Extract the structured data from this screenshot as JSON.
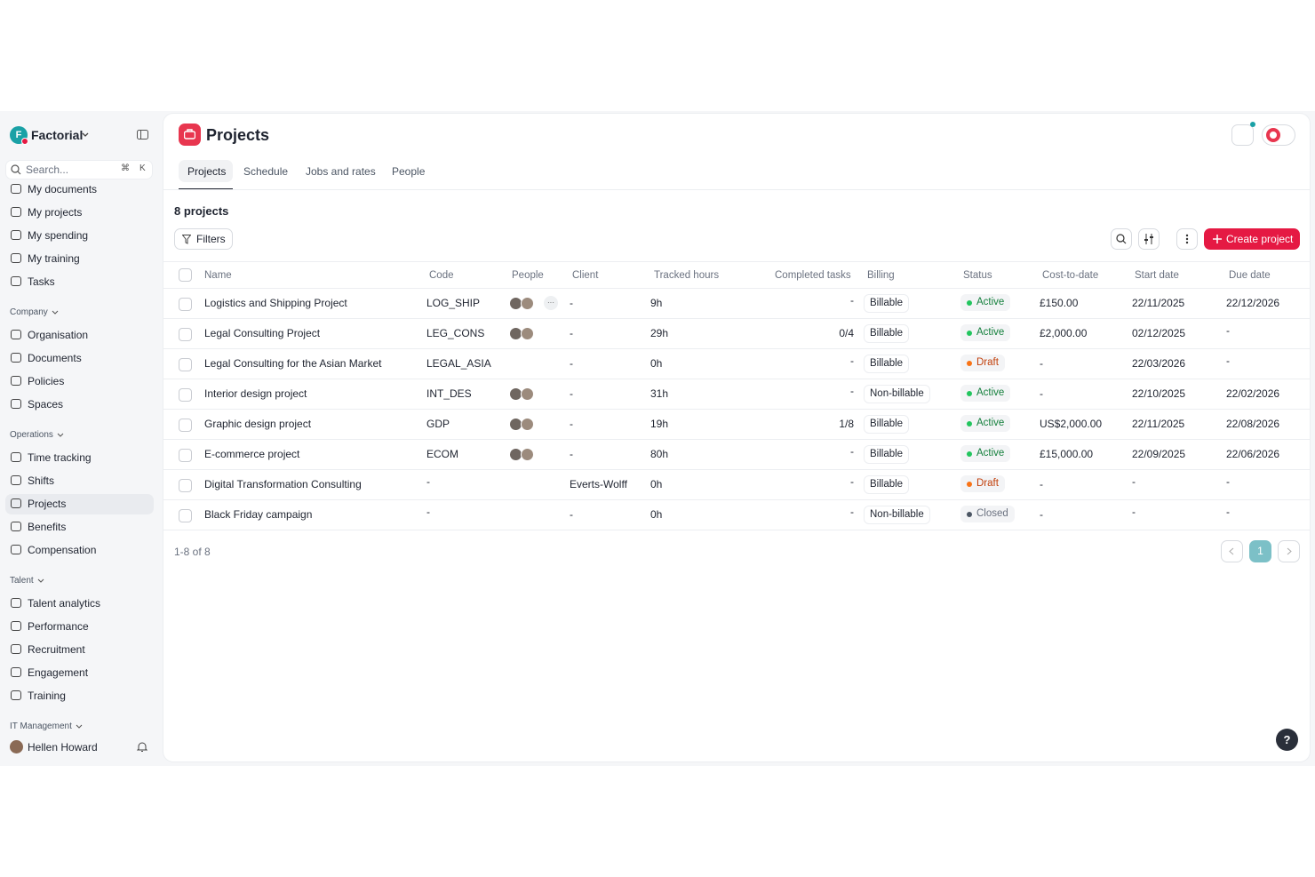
{
  "sidebar": {
    "brand": {
      "logo_letter": "F",
      "name": "Factorial"
    },
    "search": {
      "placeholder": "Search...",
      "shortcut_mod": "⌘",
      "shortcut_key": "K"
    },
    "personal": [
      "My documents",
      "My projects",
      "My spending",
      "My training",
      "Tasks"
    ],
    "sections": [
      {
        "title": "Company",
        "items": [
          "Organisation",
          "Documents",
          "Policies",
          "Spaces"
        ]
      },
      {
        "title": "Operations",
        "items": [
          "Time tracking",
          "Shifts",
          "Projects",
          "Benefits",
          "Compensation"
        ]
      },
      {
        "title": "Talent",
        "items": [
          "Talent analytics",
          "Performance",
          "Recruitment",
          "Engagement",
          "Training"
        ]
      },
      {
        "title": "IT Management",
        "items": []
      }
    ],
    "user": "Hellen Howard"
  },
  "header": {
    "title": "Projects",
    "tabs": [
      "Projects",
      "Schedule",
      "Jobs and rates",
      "People"
    ]
  },
  "toolbar": {
    "count": "8 projects",
    "filters": "Filters",
    "create": "Create project"
  },
  "table": {
    "columns": [
      "Name",
      "Code",
      "People",
      "Client",
      "Tracked hours",
      "Completed tasks",
      "Billing",
      "Status",
      "Cost-to-date",
      "Start date",
      "Due date"
    ],
    "rows": [
      {
        "name": "Logistics and Shipping Project",
        "code": "LOG_SHIP",
        "people_more": "···",
        "client": "-",
        "hours": "9h",
        "tasks": "-",
        "billing": "Billable",
        "status": "Active",
        "cost": "£150.00",
        "start": "22/11/2025",
        "due": "22/12/2026"
      },
      {
        "name": "Legal Consulting Project",
        "code": "LEG_CONS",
        "client": "-",
        "hours": "29h",
        "tasks": "0/4",
        "billing": "Billable",
        "status": "Active",
        "cost": "£2,000.00",
        "start": "02/12/2025",
        "due": "-"
      },
      {
        "name": "Legal Consulting for the Asian Market",
        "code": "LEGAL_ASIA",
        "client": "-",
        "hours": "0h",
        "tasks": "-",
        "billing": "Billable",
        "status": "Draft",
        "cost": "-",
        "start": "22/03/2026",
        "due": "-"
      },
      {
        "name": "Interior design project",
        "code": "INT_DES",
        "client": "-",
        "hours": "31h",
        "tasks": "-",
        "billing": "Non-billable",
        "status": "Active",
        "cost": "-",
        "start": "22/10/2025",
        "due": "22/02/2026"
      },
      {
        "name": "Graphic design project",
        "code": "GDP",
        "client": "-",
        "hours": "19h",
        "tasks": "1/8",
        "billing": "Billable",
        "status": "Active",
        "cost": "US$2,000.00",
        "start": "22/11/2025",
        "due": "22/08/2026"
      },
      {
        "name": "E-commerce project",
        "code": "ECOM",
        "client": "-",
        "hours": "80h",
        "tasks": "-",
        "billing": "Billable",
        "status": "Active",
        "cost": "£15,000.00",
        "start": "22/09/2025",
        "due": "22/06/2026"
      },
      {
        "name": "Digital Transformation Consulting",
        "code": "-",
        "client": "Everts-Wolff",
        "hours": "0h",
        "tasks": "-",
        "billing": "Billable",
        "status": "Draft",
        "cost": "-",
        "start": "-",
        "due": "-"
      },
      {
        "name": "Black Friday campaign",
        "code": "-",
        "client": "-",
        "hours": "0h",
        "tasks": "-",
        "billing": "Non-billable",
        "status": "Closed",
        "cost": "-",
        "start": "-",
        "due": "-"
      }
    ]
  },
  "pagination": {
    "range": "1-8 of 8",
    "page": "1"
  },
  "help": "?"
}
